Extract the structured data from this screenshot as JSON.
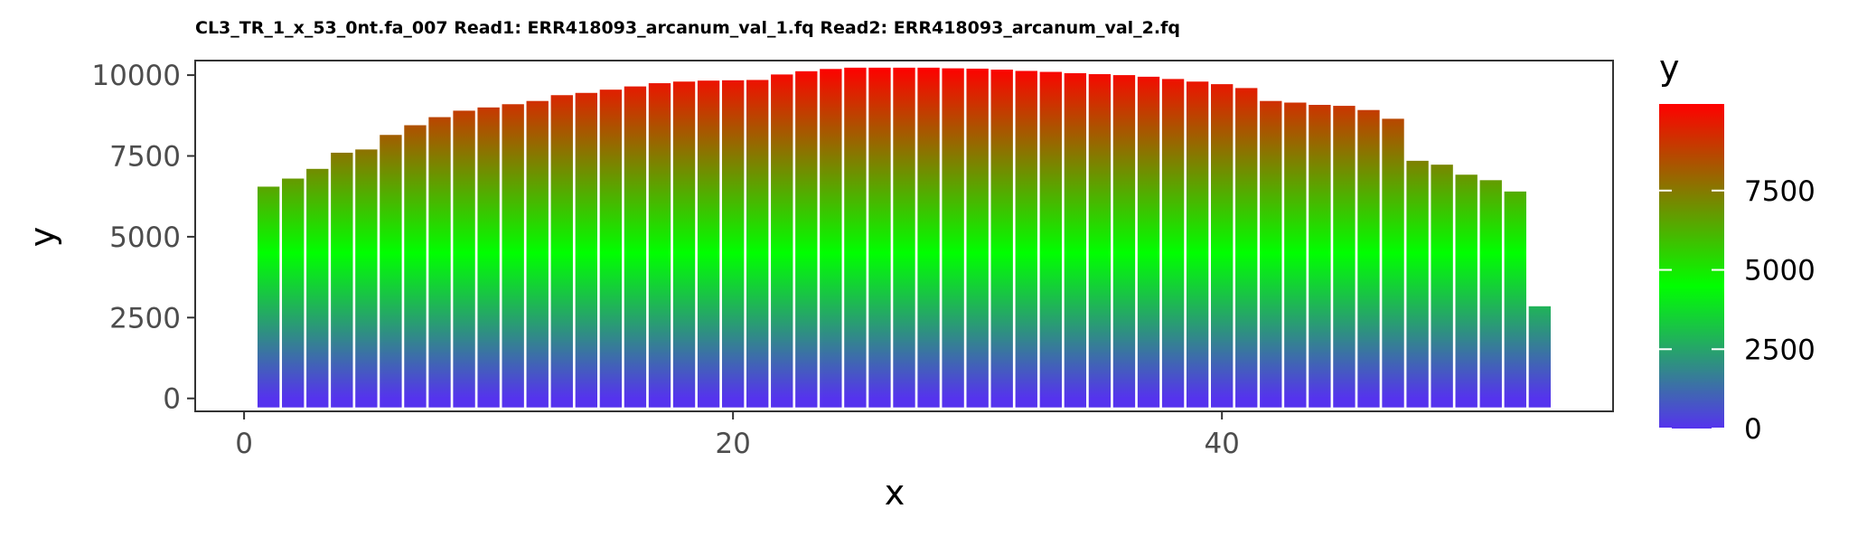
{
  "chart_data": {
    "type": "bar",
    "title": "CL3_TR_1_x_53_0nt.fa_007 Read1: ERR418093_arcanum_val_1.fq Read2: ERR418093_arcanum_val_2.fq",
    "xlabel": "x",
    "ylabel": "y",
    "x": [
      1,
      2,
      3,
      4,
      5,
      6,
      7,
      8,
      9,
      10,
      11,
      12,
      13,
      14,
      15,
      16,
      17,
      18,
      19,
      20,
      21,
      22,
      23,
      24,
      25,
      26,
      27,
      28,
      29,
      30,
      31,
      32,
      33,
      34,
      35,
      36,
      37,
      38,
      39,
      40,
      41,
      42,
      43,
      44,
      45,
      46,
      47,
      48,
      49,
      50,
      51,
      52,
      53,
      54
    ],
    "values": [
      6550,
      6800,
      7100,
      7600,
      7700,
      8150,
      8450,
      8700,
      8900,
      9000,
      9100,
      9200,
      9380,
      9450,
      9550,
      9650,
      9750,
      9800,
      9830,
      9840,
      9850,
      10020,
      10120,
      10190,
      10230,
      10230,
      10230,
      10230,
      10210,
      10200,
      10170,
      10130,
      10100,
      10060,
      10030,
      10000,
      9950,
      9880,
      9800,
      9720,
      9600,
      9200,
      9150,
      9080,
      9050,
      8920,
      8650,
      7350,
      7230,
      6920,
      6750,
      6400,
      2850,
      0
    ],
    "xlim": [
      -2,
      56
    ],
    "ylim": [
      -400,
      10450
    ],
    "x_ticks": [
      0,
      20,
      40
    ],
    "x_tick_labels": [
      "0",
      "20",
      "40"
    ],
    "y_ticks": [
      0,
      2500,
      5000,
      7500,
      10000
    ],
    "y_tick_labels": [
      "0",
      "2500",
      "5000",
      "7500",
      "10000"
    ],
    "grid": false,
    "legend": {
      "title": "y",
      "position": "right",
      "type": "colorbar",
      "ticks": [
        0,
        2500,
        5000,
        7500
      ],
      "tick_labels": [
        "0",
        "2500",
        "5000",
        "7500"
      ],
      "range": [
        0,
        10230
      ]
    },
    "color_scale": {
      "low": "#5533ee",
      "mid": "#00ff00",
      "high": "#ff0000",
      "midpoint": 4500
    }
  }
}
